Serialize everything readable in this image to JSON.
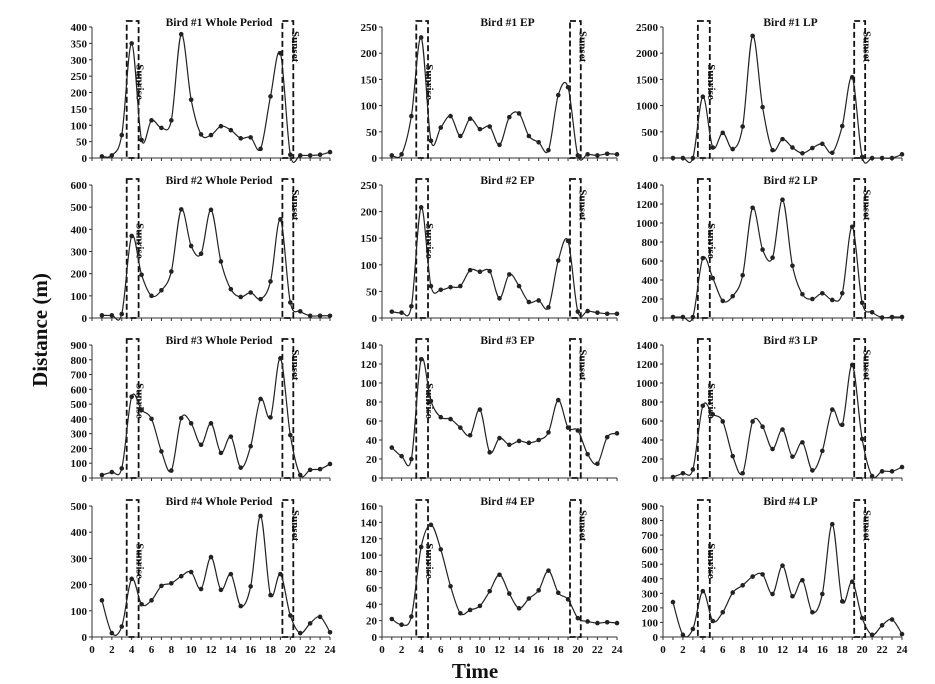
{
  "chart_data": {
    "type": "line",
    "xlabel": "Time",
    "ylabel": "Distance (m)",
    "xlim": [
      0,
      24
    ],
    "x_ticks": [
      0,
      2,
      4,
      6,
      8,
      10,
      12,
      14,
      16,
      18,
      20,
      22,
      24
    ],
    "x": [
      1,
      2,
      3,
      4,
      5,
      6,
      7,
      8,
      9,
      10,
      11,
      12,
      13,
      14,
      15,
      16,
      17,
      18,
      19,
      20,
      21,
      22,
      23,
      24
    ],
    "grid": false,
    "line_color": "#222222",
    "marker": "filled-circle",
    "window_labels": {
      "sunrise": "Sunrise",
      "sunset": "Sunset"
    },
    "sunrise_window": [
      3.5,
      4.7
    ],
    "sunset_window": [
      19.2,
      20.3
    ],
    "panels": [
      {
        "title": "Bird #1 Whole Period",
        "ylim": [
          0,
          400
        ],
        "ystep": 50,
        "values": [
          5,
          8,
          70,
          350,
          55,
          115,
          92,
          115,
          378,
          178,
          72,
          70,
          97,
          85,
          60,
          63,
          28,
          188,
          320,
          10,
          8,
          8,
          10,
          18
        ]
      },
      {
        "title": "Bird #1 EP",
        "ylim": [
          0,
          250
        ],
        "ystep": 50,
        "values": [
          5,
          7,
          80,
          230,
          33,
          58,
          80,
          42,
          75,
          55,
          60,
          25,
          78,
          85,
          42,
          30,
          15,
          120,
          135,
          5,
          7,
          5,
          8,
          7
        ]
      },
      {
        "title": "Bird #1 LP",
        "ylim": [
          0,
          2500
        ],
        "ystep": 500,
        "values": [
          0,
          0,
          0,
          1170,
          200,
          480,
          170,
          600,
          2330,
          970,
          150,
          360,
          200,
          90,
          190,
          270,
          100,
          610,
          1540,
          20,
          0,
          0,
          0,
          70
        ]
      },
      {
        "title": "Bird #2 Whole Period",
        "ylim": [
          0,
          600
        ],
        "ystep": 100,
        "values": [
          12,
          12,
          18,
          370,
          195,
          100,
          125,
          210,
          490,
          325,
          290,
          488,
          255,
          130,
          95,
          115,
          85,
          165,
          445,
          70,
          30,
          10,
          10,
          10
        ]
      },
      {
        "title": "Bird #2 EP",
        "ylim": [
          0,
          250
        ],
        "ystep": 50,
        "values": [
          12,
          10,
          22,
          208,
          60,
          53,
          58,
          60,
          90,
          87,
          88,
          37,
          82,
          60,
          30,
          33,
          20,
          108,
          145,
          12,
          13,
          10,
          8,
          8
        ]
      },
      {
        "title": "Bird #2 LP",
        "ylim": [
          0,
          1400
        ],
        "ystep": 200,
        "values": [
          10,
          10,
          10,
          630,
          420,
          180,
          230,
          450,
          1160,
          720,
          635,
          1245,
          550,
          250,
          200,
          260,
          190,
          260,
          960,
          160,
          60,
          5,
          10,
          10
        ]
      },
      {
        "title": "Bird #3 Whole Period",
        "ylim": [
          0,
          900
        ],
        "ystep": 100,
        "values": [
          20,
          40,
          65,
          550,
          460,
          400,
          180,
          50,
          405,
          370,
          225,
          370,
          170,
          280,
          70,
          215,
          535,
          410,
          810,
          290,
          20,
          55,
          60,
          95
        ]
      },
      {
        "title": "Bird #3 EP",
        "ylim": [
          0,
          140
        ],
        "ystep": 20,
        "values": [
          32,
          23,
          20,
          125,
          81,
          64,
          62,
          53,
          45,
          72,
          27,
          42,
          35,
          39,
          37,
          40,
          48,
          82,
          53,
          50,
          25,
          15,
          43,
          47
        ]
      },
      {
        "title": "Bird #3 LP",
        "ylim": [
          0,
          1400
        ],
        "ystep": 200,
        "values": [
          10,
          50,
          90,
          760,
          670,
          595,
          230,
          50,
          595,
          540,
          305,
          510,
          225,
          375,
          80,
          285,
          720,
          560,
          1190,
          410,
          20,
          70,
          70,
          115
        ]
      },
      {
        "title": "Bird #4 Whole Period",
        "ylim": [
          0,
          500
        ],
        "ystep": 100,
        "values": [
          140,
          15,
          40,
          222,
          125,
          140,
          195,
          205,
          232,
          248,
          183,
          305,
          180,
          240,
          118,
          193,
          462,
          160,
          240,
          82,
          15,
          52,
          77,
          18
        ]
      },
      {
        "title": "Bird #4 EP",
        "ylim": [
          0,
          160
        ],
        "ystep": 20,
        "values": [
          22,
          15,
          25,
          110,
          137,
          107,
          62,
          29,
          33,
          38,
          56,
          76,
          53,
          35,
          47,
          57,
          81,
          54,
          46,
          23,
          19,
          17,
          18,
          17
        ]
      },
      {
        "title": "Bird #4 LP",
        "ylim": [
          0,
          900
        ],
        "ystep": 100,
        "values": [
          240,
          15,
          55,
          315,
          110,
          170,
          305,
          355,
          415,
          430,
          295,
          490,
          280,
          390,
          170,
          295,
          775,
          245,
          380,
          130,
          15,
          80,
          120,
          20
        ]
      }
    ]
  }
}
